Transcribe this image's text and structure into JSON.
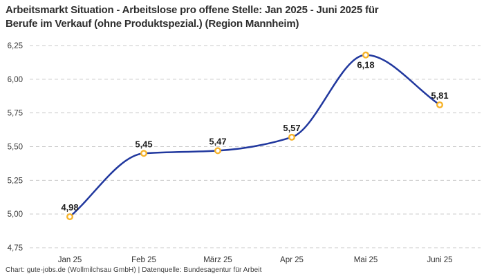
{
  "header": {
    "title_line1": "Arbeitsmarkt Situation - Arbeitslose pro offene Stelle: Jan 2025 - Juni 2025 für",
    "title_line2": "Berufe im Verkauf (ohne Produktspezial.) (Region Mannheim)"
  },
  "footer": {
    "text": "Chart: gute-jobs.de (Wollmilchsau GmbH) | Datenquelle: Bundesagentur für Arbeit"
  },
  "colors": {
    "line": "#21389e",
    "marker_stroke": "#f6b32b",
    "marker_fill": "#ffffff",
    "grid": "#c9c9c9",
    "axis_text": "#333333",
    "label_text": "#1f1f1f",
    "background": "#ffffff"
  },
  "chart_data": {
    "type": "line",
    "title": "Arbeitsmarkt Situation - Arbeitslose pro offene Stelle: Jan 2025 - Juni 2025 für Berufe im Verkauf (ohne Produktspezial.) (Region Mannheim)",
    "categories": [
      "Jan 25",
      "Feb 25",
      "März 25",
      "Apr 25",
      "Mai 25",
      "Juni 25"
    ],
    "values": [
      4.98,
      5.45,
      5.47,
      5.57,
      6.18,
      5.81
    ],
    "point_labels": [
      "4,98",
      "5,45",
      "5,47",
      "5,57",
      "6,18",
      "5,81"
    ],
    "label_placement": [
      "above",
      "above",
      "above",
      "above",
      "below",
      "above"
    ],
    "y_ticks": [
      {
        "value": 6.25,
        "label": "6,25"
      },
      {
        "value": 6.0,
        "label": "6,00"
      },
      {
        "value": 5.75,
        "label": "5,75"
      },
      {
        "value": 5.5,
        "label": "5,50"
      },
      {
        "value": 5.25,
        "label": "5,25"
      },
      {
        "value": 5.0,
        "label": "5,00"
      },
      {
        "value": 4.75,
        "label": "4,75"
      }
    ],
    "ylim": [
      4.75,
      6.25
    ],
    "xlabel": "",
    "ylabel": "",
    "grid": "horizontal-dashed",
    "legend": "none",
    "curve": "monotone"
  }
}
